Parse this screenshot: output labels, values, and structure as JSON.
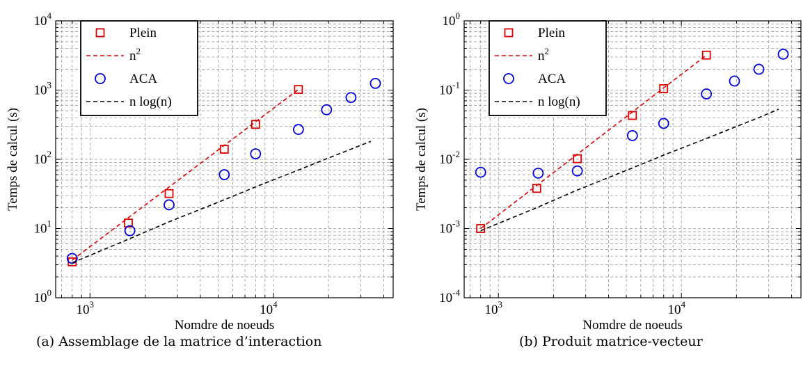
{
  "chart_data": [
    {
      "type": "scatter",
      "caption": "(a) Assemblage de la matrice d’interaction",
      "xlabel": "Nomdre de noeuds",
      "ylabel": "Temps de calcul (s)",
      "xscale": "log",
      "yscale": "log",
      "xlim": [
        650,
        45000
      ],
      "ylim": [
        1,
        10000
      ],
      "xticks": [
        {
          "base": "10",
          "exp": "3",
          "value": 1000
        },
        {
          "base": "10",
          "exp": "4",
          "value": 10000
        }
      ],
      "yticks": [
        {
          "base": "10",
          "exp": "0",
          "value": 1
        },
        {
          "base": "10",
          "exp": "1",
          "value": 10
        },
        {
          "base": "10",
          "exp": "2",
          "value": 100
        },
        {
          "base": "10",
          "exp": "3",
          "value": 1000
        },
        {
          "base": "10",
          "exp": "4",
          "value": 10000
        }
      ],
      "grid": true,
      "legend_position": "top-left",
      "series": [
        {
          "name": "Plein",
          "style": "marker",
          "marker": "square",
          "color": "#e00000",
          "x": [
            800,
            1620,
            2700,
            5400,
            8000,
            13700
          ],
          "y": [
            3.3,
            12,
            32,
            140,
            320,
            1020
          ]
        },
        {
          "name": "n",
          "name_sup": "2",
          "style": "dashed-line",
          "color": "#e00000",
          "x": [
            800,
            13700
          ],
          "y": [
            3.5,
            1020
          ]
        },
        {
          "name": "ACA",
          "style": "marker",
          "marker": "circle",
          "color": "#0000e0",
          "x": [
            800,
            1650,
            2700,
            5400,
            8000,
            13700,
            19500,
            26500,
            36000
          ],
          "y": [
            3.7,
            9.3,
            22,
            60,
            120,
            270,
            520,
            780,
            1250
          ]
        },
        {
          "name": "n log(n)",
          "style": "dashed-line",
          "color": "#000000",
          "x": [
            800,
            1620,
            2700,
            5400,
            8000,
            13700,
            19500,
            26500,
            34000
          ],
          "y": [
            3.2,
            7,
            12.5,
            26,
            40,
            70,
            102,
            140,
            182
          ]
        }
      ]
    },
    {
      "type": "scatter",
      "caption": "(b) Produit matrice-vecteur",
      "xlabel": "Nomdre de noeuds",
      "ylabel": "Temps de calcul (s)",
      "xscale": "log",
      "yscale": "log",
      "xlim": [
        650,
        45000
      ],
      "ylim": [
        0.0001,
        1
      ],
      "xticks": [
        {
          "base": "10",
          "exp": "3",
          "value": 1000
        },
        {
          "base": "10",
          "exp": "4",
          "value": 10000
        }
      ],
      "yticks": [
        {
          "base": "10",
          "exp": "-4",
          "value": 0.0001
        },
        {
          "base": "10",
          "exp": "-3",
          "value": 0.001
        },
        {
          "base": "10",
          "exp": "-2",
          "value": 0.01
        },
        {
          "base": "10",
          "exp": "-1",
          "value": 0.1
        },
        {
          "base": "10",
          "exp": "0",
          "value": 1
        }
      ],
      "grid": true,
      "legend_position": "top-left",
      "series": [
        {
          "name": "Plein",
          "style": "marker",
          "marker": "square",
          "color": "#e00000",
          "x": [
            800,
            1620,
            2700,
            5400,
            8000,
            13700
          ],
          "y": [
            0.001,
            0.0038,
            0.0102,
            0.043,
            0.105,
            0.32
          ]
        },
        {
          "name": "n",
          "name_sup": "2",
          "style": "dashed-line",
          "color": "#e00000",
          "x": [
            800,
            13700
          ],
          "y": [
            0.001,
            0.32
          ]
        },
        {
          "name": "ACA",
          "style": "marker",
          "marker": "circle",
          "color": "#0000e0",
          "x": [
            800,
            1650,
            2700,
            5400,
            8000,
            13700,
            19500,
            26500,
            36000
          ],
          "y": [
            0.0065,
            0.0063,
            0.0068,
            0.022,
            0.033,
            0.088,
            0.135,
            0.2,
            0.33
          ]
        },
        {
          "name": "n log(n)",
          "style": "dashed-line",
          "color": "#000000",
          "x": [
            800,
            1620,
            2700,
            5400,
            8000,
            13700,
            19500,
            26500,
            34000
          ],
          "y": [
            0.00093,
            0.002,
            0.0036,
            0.0075,
            0.0115,
            0.02,
            0.029,
            0.04,
            0.053
          ]
        }
      ]
    }
  ]
}
